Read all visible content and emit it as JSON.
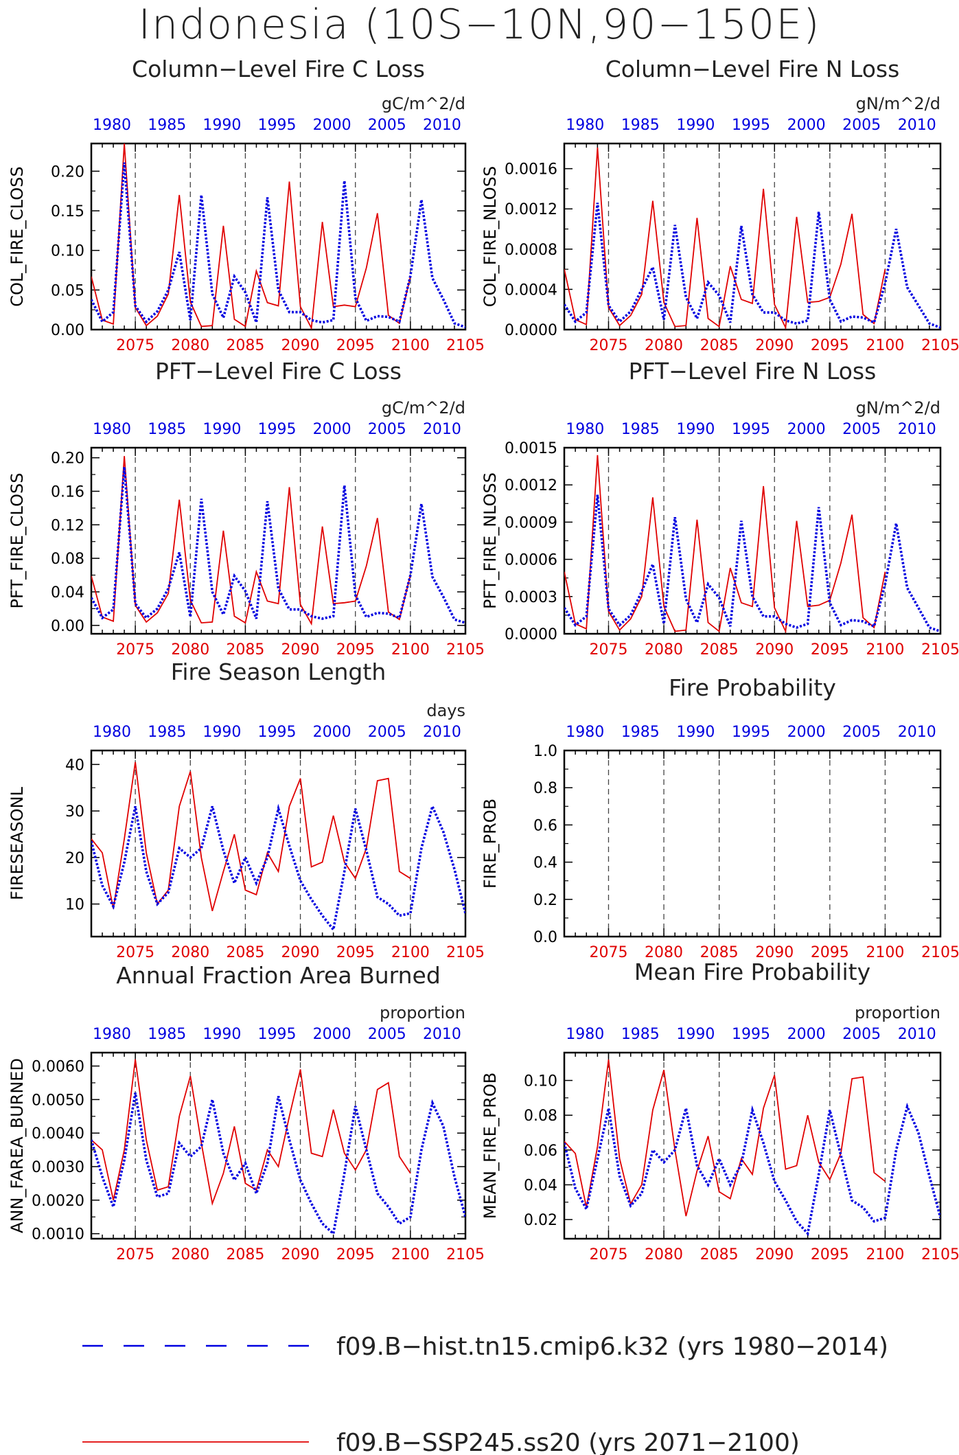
{
  "title": "Indonesia (10S−10N,90−150E)",
  "legend": [
    {
      "name": "f09.B−hist.tn15.cmip6.k32 (yrs 1980−2014)",
      "color": "#0000e0",
      "style": "dashed"
    },
    {
      "name": "f09.B−SSP245.ss20 (yrs 2071−2100)",
      "color": "#e00000",
      "style": "solid"
    }
  ],
  "chart_data": [
    {
      "type": "line",
      "title": "Column−Level Fire C Loss",
      "units": "gC/m^2/d",
      "ylabel": "COL_FIRE_CLOSS",
      "ylim": [
        0,
        0.235
      ],
      "yticks": [
        0.0,
        0.05,
        0.1,
        0.15,
        0.2
      ],
      "ytick_labels": [
        "0.00",
        "0.05",
        "0.10",
        "0.15",
        "0.20"
      ],
      "xlim": [
        2071,
        2105
      ],
      "xticks_bottom": [
        "2075",
        "2080",
        "2085",
        "2090",
        "2095",
        "2100",
        "2105"
      ],
      "xticks_top": [
        "1980",
        "1985",
        "1990",
        "1995",
        "2000",
        "2005",
        "2010"
      ],
      "series": [
        {
          "name": "f09.B−SSP245.ss20",
          "color": "#e00000",
          "x_start": 2071,
          "values": [
            0.067,
            0.012,
            0.007,
            0.235,
            0.028,
            0.005,
            0.017,
            0.045,
            0.17,
            0.035,
            0.004,
            0.005,
            0.131,
            0.013,
            0.004,
            0.074,
            0.034,
            0.03,
            0.187,
            0.029,
            0.002,
            0.136,
            0.029,
            0.031,
            0.029,
            0.078,
            0.147,
            0.018,
            0.008,
            0.067
          ]
        },
        {
          "name": "f09.B−hist.tn15.cmip6.k32",
          "color": "#0000e0",
          "x_start": 2071,
          "values": [
            0.038,
            0.01,
            0.022,
            0.211,
            0.03,
            0.01,
            0.023,
            0.05,
            0.098,
            0.012,
            0.17,
            0.045,
            0.015,
            0.067,
            0.047,
            0.009,
            0.167,
            0.05,
            0.022,
            0.022,
            0.012,
            0.009,
            0.012,
            0.188,
            0.04,
            0.011,
            0.017,
            0.016,
            0.01,
            0.068,
            0.164,
            0.065,
            0.038,
            0.008,
            0.003
          ]
        }
      ]
    },
    {
      "type": "line",
      "title": "Column−Level Fire N Loss",
      "units": "gN/m^2/d",
      "ylabel": "COL_FIRE_NLOSS",
      "ylim": [
        0,
        0.00185
      ],
      "yticks": [
        0.0,
        0.0004,
        0.0008,
        0.0012,
        0.0016
      ],
      "ytick_labels": [
        "0.0000",
        "0.0004",
        "0.0008",
        "0.0012",
        "0.0016"
      ],
      "xlim": [
        2071,
        2105
      ],
      "xticks_bottom": [
        "2075",
        "2080",
        "2085",
        "2090",
        "2095",
        "2100",
        "2105"
      ],
      "xticks_top": [
        "1980",
        "1985",
        "1990",
        "1995",
        "2000",
        "2005",
        "2010"
      ],
      "series": [
        {
          "name": "f09.B−SSP245.ss20",
          "color": "#e00000",
          "x_start": 2071,
          "values": [
            0.0006,
            0.0001,
            5e-05,
            0.00181,
            0.00022,
            4e-05,
            0.00014,
            0.00035,
            0.00128,
            0.00027,
            3e-05,
            4e-05,
            0.00111,
            0.00011,
            3e-05,
            0.00063,
            0.0003,
            0.00026,
            0.0014,
            0.00025,
            2e-05,
            0.00112,
            0.00027,
            0.00028,
            0.00032,
            0.00065,
            0.00115,
            0.00015,
            6e-05,
            0.0006
          ]
        },
        {
          "name": "f09.B−hist.tn15.cmip6.k32",
          "color": "#0000e0",
          "x_start": 2071,
          "values": [
            0.00025,
            8e-05,
            0.00017,
            0.00126,
            0.00024,
            8e-05,
            0.00018,
            0.0004,
            0.00062,
            0.0001,
            0.00104,
            0.00032,
            0.00011,
            0.00047,
            0.00034,
            7e-05,
            0.00103,
            0.00035,
            0.00017,
            0.00017,
            9e-05,
            6e-05,
            9e-05,
            0.00117,
            0.0003,
            8e-05,
            0.00013,
            0.00012,
            7e-05,
            0.00046,
            0.001,
            0.00042,
            0.00024,
            6e-05,
            2e-05
          ]
        }
      ]
    },
    {
      "type": "line",
      "title": "PFT−Level Fire C Loss",
      "units": "gC/m^2/d",
      "ylabel": "PFT_FIRE_CLOSS",
      "ylim": [
        -0.01,
        0.212
      ],
      "yticks": [
        0.0,
        0.04,
        0.08,
        0.12,
        0.16,
        0.2
      ],
      "ytick_labels": [
        "0.00",
        "0.04",
        "0.08",
        "0.12",
        "0.16",
        "0.20"
      ],
      "xlim": [
        2071,
        2105
      ],
      "xticks_bottom": [
        "2075",
        "2080",
        "2085",
        "2090",
        "2095",
        "2100",
        "2105"
      ],
      "xticks_top": [
        "1980",
        "1985",
        "1990",
        "1995",
        "2000",
        "2005",
        "2010"
      ],
      "series": [
        {
          "name": "f09.B−SSP245.ss20",
          "color": "#e00000",
          "x_start": 2071,
          "values": [
            0.059,
            0.01,
            0.005,
            0.202,
            0.024,
            0.004,
            0.015,
            0.038,
            0.15,
            0.03,
            0.003,
            0.004,
            0.113,
            0.011,
            0.003,
            0.064,
            0.029,
            0.026,
            0.165,
            0.025,
            0.002,
            0.118,
            0.026,
            0.027,
            0.029,
            0.071,
            0.128,
            0.016,
            0.007,
            0.06
          ]
        },
        {
          "name": "f09.B−hist.tn15.cmip6.k32",
          "color": "#0000e0",
          "x_start": 2071,
          "values": [
            0.033,
            0.009,
            0.019,
            0.189,
            0.026,
            0.009,
            0.02,
            0.044,
            0.087,
            0.01,
            0.151,
            0.04,
            0.013,
            0.059,
            0.041,
            0.008,
            0.148,
            0.044,
            0.019,
            0.019,
            0.011,
            0.008,
            0.011,
            0.167,
            0.036,
            0.01,
            0.015,
            0.014,
            0.009,
            0.06,
            0.145,
            0.058,
            0.034,
            0.007,
            0.003
          ]
        }
      ]
    },
    {
      "type": "line",
      "title": "PFT−Level Fire N Loss",
      "units": "gN/m^2/d",
      "ylabel": "PFT_FIRE_NLOSS",
      "ylim": [
        0,
        0.0015
      ],
      "yticks": [
        0.0,
        0.0003,
        0.0006,
        0.0009,
        0.0012,
        0.0015
      ],
      "ytick_labels": [
        "0.0000",
        "0.0003",
        "0.0006",
        "0.0009",
        "0.0012",
        "0.0015"
      ],
      "xlim": [
        2071,
        2105
      ],
      "xticks_bottom": [
        "2075",
        "2080",
        "2085",
        "2090",
        "2095",
        "2100",
        "2105"
      ],
      "xticks_top": [
        "1980",
        "1985",
        "1990",
        "1995",
        "2000",
        "2005",
        "2010"
      ],
      "series": [
        {
          "name": "f09.B−SSP245.ss20",
          "color": "#e00000",
          "x_start": 2071,
          "values": [
            0.0005,
            8e-05,
            4e-05,
            0.00144,
            0.00018,
            3e-05,
            0.00012,
            0.0003,
            0.0011,
            0.00022,
            2e-05,
            3e-05,
            0.00092,
            9e-05,
            2e-05,
            0.00053,
            0.00025,
            0.00022,
            0.00119,
            0.00021,
            2e-05,
            0.00091,
            0.00022,
            0.00023,
            0.00027,
            0.00057,
            0.00096,
            0.00013,
            5e-05,
            0.0005
          ]
        },
        {
          "name": "f09.B−hist.tn15.cmip6.k32",
          "color": "#0000e0",
          "x_start": 2071,
          "values": [
            0.00021,
            7e-05,
            0.00014,
            0.00112,
            0.0002,
            7e-05,
            0.00015,
            0.00034,
            0.00056,
            8e-05,
            0.00094,
            0.00028,
            9e-05,
            0.0004,
            0.00029,
            6e-05,
            0.00091,
            0.0003,
            0.00014,
            0.00014,
            8e-05,
            5e-05,
            8e-05,
            0.00102,
            0.00025,
            7e-05,
            0.00011,
            0.0001,
            6e-05,
            0.0004,
            0.00089,
            0.00037,
            0.00021,
            5e-05,
            2e-05
          ]
        }
      ]
    },
    {
      "type": "line",
      "title": "Fire Season Length",
      "units": "days",
      "ylabel": "FIRESEASONL",
      "ylim": [
        3,
        43
      ],
      "yticks": [
        10,
        20,
        30,
        40
      ],
      "ytick_labels": [
        "10",
        "20",
        "30",
        "40"
      ],
      "xlim": [
        2071,
        2105
      ],
      "xticks_bottom": [
        "2075",
        "2080",
        "2085",
        "2090",
        "2095",
        "2100",
        "2105"
      ],
      "xticks_top": [
        "1980",
        "1985",
        "1990",
        "1995",
        "2000",
        "2005",
        "2010"
      ],
      "series": [
        {
          "name": "f09.B−SSP245.ss20",
          "color": "#e00000",
          "x_start": 2071,
          "values": [
            24,
            21,
            9,
            24,
            40.5,
            21,
            10,
            13,
            31,
            38.5,
            20,
            8.5,
            17,
            25,
            13,
            12,
            21,
            17,
            31,
            37,
            18,
            19,
            29,
            19,
            15.5,
            22,
            36.5,
            37,
            17,
            15.5
          ]
        },
        {
          "name": "f09.B−hist.tn15.cmip6.k32",
          "color": "#0000e0",
          "x_start": 2071,
          "values": [
            23.5,
            14,
            9.5,
            19,
            31,
            17,
            10,
            12.5,
            22,
            20,
            22,
            31,
            21.5,
            14.5,
            20,
            14.5,
            20,
            30.5,
            22.5,
            15,
            11,
            7.5,
            4.5,
            17,
            30.5,
            21.5,
            11.5,
            10,
            7.5,
            8,
            22,
            31,
            25.5,
            17.5,
            8
          ]
        }
      ]
    },
    {
      "type": "line",
      "title": "Fire Probability",
      "units": "",
      "ylabel": "FIRE_PROB",
      "ylim": [
        0,
        1
      ],
      "yticks": [
        0.0,
        0.2,
        0.4,
        0.6,
        0.8,
        1.0
      ],
      "ytick_labels": [
        "0.0",
        "0.2",
        "0.4",
        "0.6",
        "0.8",
        "1.0"
      ],
      "xlim": [
        2071,
        2105
      ],
      "xticks_bottom": [
        "2075",
        "2080",
        "2085",
        "2090",
        "2095",
        "2100",
        "2105"
      ],
      "xticks_top": [
        "1980",
        "1985",
        "1990",
        "1995",
        "2000",
        "2005",
        "2010"
      ],
      "series": []
    },
    {
      "type": "line",
      "title": "Annual Fraction Area Burned",
      "units": "proportion",
      "ylabel": "ANN_FAREA_BURNED",
      "ylim": [
        0.00085,
        0.0064
      ],
      "yticks": [
        0.001,
        0.002,
        0.003,
        0.004,
        0.005,
        0.006
      ],
      "ytick_labels": [
        "0.0010",
        "0.0020",
        "0.0030",
        "0.0040",
        "0.0050",
        "0.0060"
      ],
      "xlim": [
        2071,
        2105
      ],
      "xticks_bottom": [
        "2075",
        "2080",
        "2085",
        "2090",
        "2095",
        "2100",
        "2105"
      ],
      "xticks_top": [
        "1980",
        "1985",
        "1990",
        "1995",
        "2000",
        "2005",
        "2010"
      ],
      "series": [
        {
          "name": "f09.B−SSP245.ss20",
          "color": "#e00000",
          "x_start": 2071,
          "values": [
            0.0038,
            0.0035,
            0.002,
            0.0035,
            0.0062,
            0.0038,
            0.0023,
            0.0024,
            0.0045,
            0.0057,
            0.0037,
            0.0019,
            0.0028,
            0.0042,
            0.0025,
            0.0023,
            0.0035,
            0.003,
            0.0045,
            0.0059,
            0.0034,
            0.0033,
            0.0047,
            0.0034,
            0.0029,
            0.0035,
            0.0053,
            0.0055,
            0.0033,
            0.0028
          ]
        },
        {
          "name": "f09.B−hist.tn15.cmip6.k32",
          "color": "#0000e0",
          "x_start": 2071,
          "values": [
            0.0038,
            0.0027,
            0.0018,
            0.0032,
            0.0052,
            0.0032,
            0.0021,
            0.0022,
            0.0037,
            0.0033,
            0.0036,
            0.005,
            0.0034,
            0.0026,
            0.0031,
            0.0022,
            0.0031,
            0.0051,
            0.0038,
            0.0026,
            0.0019,
            0.0013,
            0.001,
            0.0028,
            0.0048,
            0.0035,
            0.0022,
            0.0018,
            0.0013,
            0.0015,
            0.0035,
            0.0049,
            0.0042,
            0.0027,
            0.0015
          ]
        }
      ]
    },
    {
      "type": "line",
      "title": "Mean Fire Probability",
      "units": "proportion",
      "ylabel": "MEAN_FIRE_PROB",
      "ylim": [
        0.009,
        0.116
      ],
      "yticks": [
        0.02,
        0.04,
        0.06,
        0.08,
        0.1
      ],
      "ytick_labels": [
        "0.02",
        "0.04",
        "0.06",
        "0.08",
        "0.10"
      ],
      "xlim": [
        2071,
        2105
      ],
      "xticks_bottom": [
        "2075",
        "2080",
        "2085",
        "2090",
        "2095",
        "2100",
        "2105"
      ],
      "xticks_top": [
        "1980",
        "1985",
        "1990",
        "1995",
        "2000",
        "2005",
        "2010"
      ],
      "series": [
        {
          "name": "f09.B−SSP245.ss20",
          "color": "#e00000",
          "x_start": 2071,
          "values": [
            0.065,
            0.058,
            0.027,
            0.062,
            0.112,
            0.055,
            0.029,
            0.04,
            0.083,
            0.106,
            0.06,
            0.022,
            0.048,
            0.068,
            0.036,
            0.032,
            0.055,
            0.046,
            0.084,
            0.103,
            0.049,
            0.051,
            0.08,
            0.053,
            0.043,
            0.058,
            0.101,
            0.102,
            0.047,
            0.042
          ]
        },
        {
          "name": "f09.B−hist.tn15.cmip6.k32",
          "color": "#0000e0",
          "x_start": 2071,
          "values": [
            0.064,
            0.038,
            0.026,
            0.055,
            0.084,
            0.045,
            0.028,
            0.035,
            0.06,
            0.053,
            0.06,
            0.084,
            0.051,
            0.04,
            0.055,
            0.04,
            0.052,
            0.083,
            0.064,
            0.042,
            0.031,
            0.019,
            0.012,
            0.046,
            0.083,
            0.057,
            0.031,
            0.027,
            0.019,
            0.021,
            0.06,
            0.085,
            0.07,
            0.045,
            0.021
          ]
        }
      ]
    }
  ]
}
